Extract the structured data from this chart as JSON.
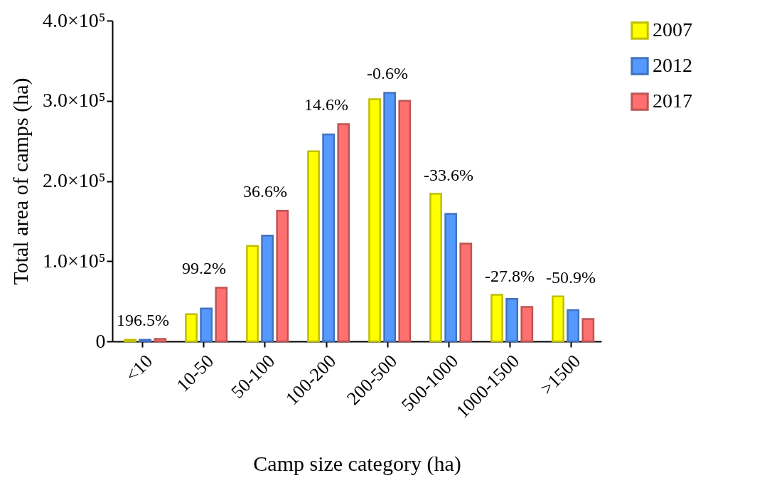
{
  "chart_data": {
    "type": "bar",
    "xlabel": "Camp size category (ha)",
    "ylabel": "Total area of camps (ha)",
    "categories": [
      "<10",
      "10-50",
      "50-100",
      "100-200",
      "200-500",
      "500-1000",
      "1000-1500",
      ">1500"
    ],
    "series": [
      {
        "name": "2007",
        "color": "#ffff00",
        "values": [
          2000,
          34000,
          119000,
          237000,
          302000,
          184000,
          58000,
          56000
        ]
      },
      {
        "name": "2012",
        "color": "#5599ff",
        "values": [
          2000,
          41000,
          132000,
          258000,
          310000,
          159000,
          53000,
          39000
        ]
      },
      {
        "name": "2017",
        "color": "#ff7070",
        "values": [
          3000,
          67000,
          163000,
          271000,
          300000,
          122000,
          43000,
          28000
        ]
      }
    ],
    "ylim": [
      0,
      400000
    ],
    "yticks": [
      0,
      {
        "value": 100000,
        "label": "1.0×10⁵"
      },
      {
        "value": 200000,
        "label": "2.0×10⁵"
      },
      {
        "value": 300000,
        "label": "3.0×10⁵"
      },
      {
        "value": 400000,
        "label": "4.0×10⁵"
      }
    ],
    "annotations": [
      "196.5%",
      "99.2%",
      "36.6%",
      "14.6%",
      "-0.6%",
      "-33.6%",
      "-27.8%",
      "-50.9%"
    ],
    "grid": false,
    "legend": "top right"
  }
}
